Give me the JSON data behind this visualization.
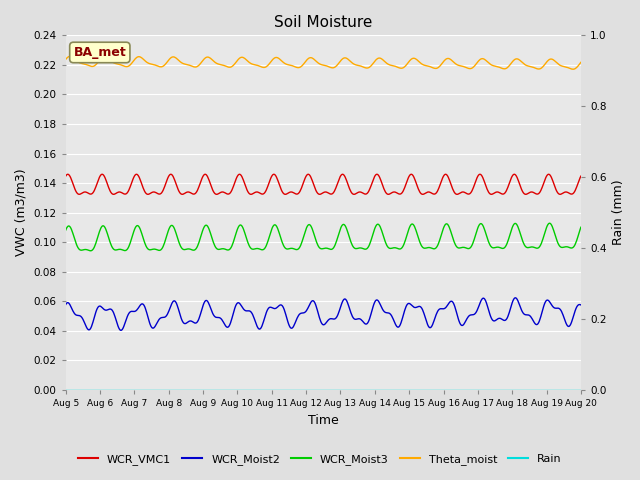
{
  "title": "Soil Moisture",
  "xlabel": "Time",
  "ylabel_left": "VWC (m3/m3)",
  "ylabel_right": "Rain (mm)",
  "xlim_days": [
    0,
    15
  ],
  "ylim_left": [
    0.0,
    0.24
  ],
  "ylim_right": [
    0.0,
    1.0
  ],
  "yticks_left": [
    0.0,
    0.02,
    0.04,
    0.06,
    0.08,
    0.1,
    0.12,
    0.14,
    0.16,
    0.18,
    0.2,
    0.22,
    0.24
  ],
  "yticks_right": [
    0.0,
    0.2,
    0.4,
    0.6,
    0.8,
    1.0
  ],
  "xtick_labels": [
    "Aug 5",
    "Aug 6",
    "Aug 7",
    "Aug 8",
    "Aug 9",
    "Aug 10",
    "Aug 11",
    "Aug 12",
    "Aug 13",
    "Aug 14",
    "Aug 15",
    "Aug 16",
    "Aug 17",
    "Aug 18",
    "Aug 19",
    "Aug 20"
  ],
  "figure_bg": "#e0e0e0",
  "plot_bg": "#e8e8e8",
  "grid_color": "#ffffff",
  "series": {
    "WCR_VMC1": {
      "color": "#dd0000",
      "mean": 0.137,
      "amplitude1": 0.006,
      "amplitude2": 0.003,
      "period1": 1.0,
      "period2": 0.5,
      "phase1": 1.2,
      "phase2": 0.8
    },
    "WCR_Moist2": {
      "color": "#0000cc",
      "mean": 0.05,
      "amplitude1": 0.007,
      "amplitude2": 0.003,
      "period1": 1.0,
      "period2": 0.45,
      "phase1": 0.8,
      "phase2": 1.2,
      "trend": 0.003
    },
    "WCR_Moist3": {
      "color": "#00cc00",
      "mean": 0.1,
      "amplitude1": 0.008,
      "amplitude2": 0.003,
      "period1": 1.0,
      "period2": 0.5,
      "phase1": 1.0,
      "phase2": 0.5,
      "trend": 0.002
    },
    "Theta_moist": {
      "color": "#ffaa00",
      "mean": 0.222,
      "amplitude1": 0.003,
      "amplitude2": 0.001,
      "period1": 1.0,
      "period2": 0.5,
      "phase1": 0.5,
      "phase2": 0.3,
      "trend": -0.002
    },
    "Rain": {
      "color": "#00dddd",
      "value": 0.0
    }
  },
  "annotation_text": "BA_met",
  "annotation_color": "#8b0000",
  "annotation_bg": "#ffffcc",
  "legend_labels": [
    "WCR_VMC1",
    "WCR_Moist2",
    "WCR_Moist3",
    "Theta_moist",
    "Rain"
  ],
  "legend_colors": [
    "#dd0000",
    "#0000cc",
    "#00cc00",
    "#ffaa00",
    "#00dddd"
  ]
}
